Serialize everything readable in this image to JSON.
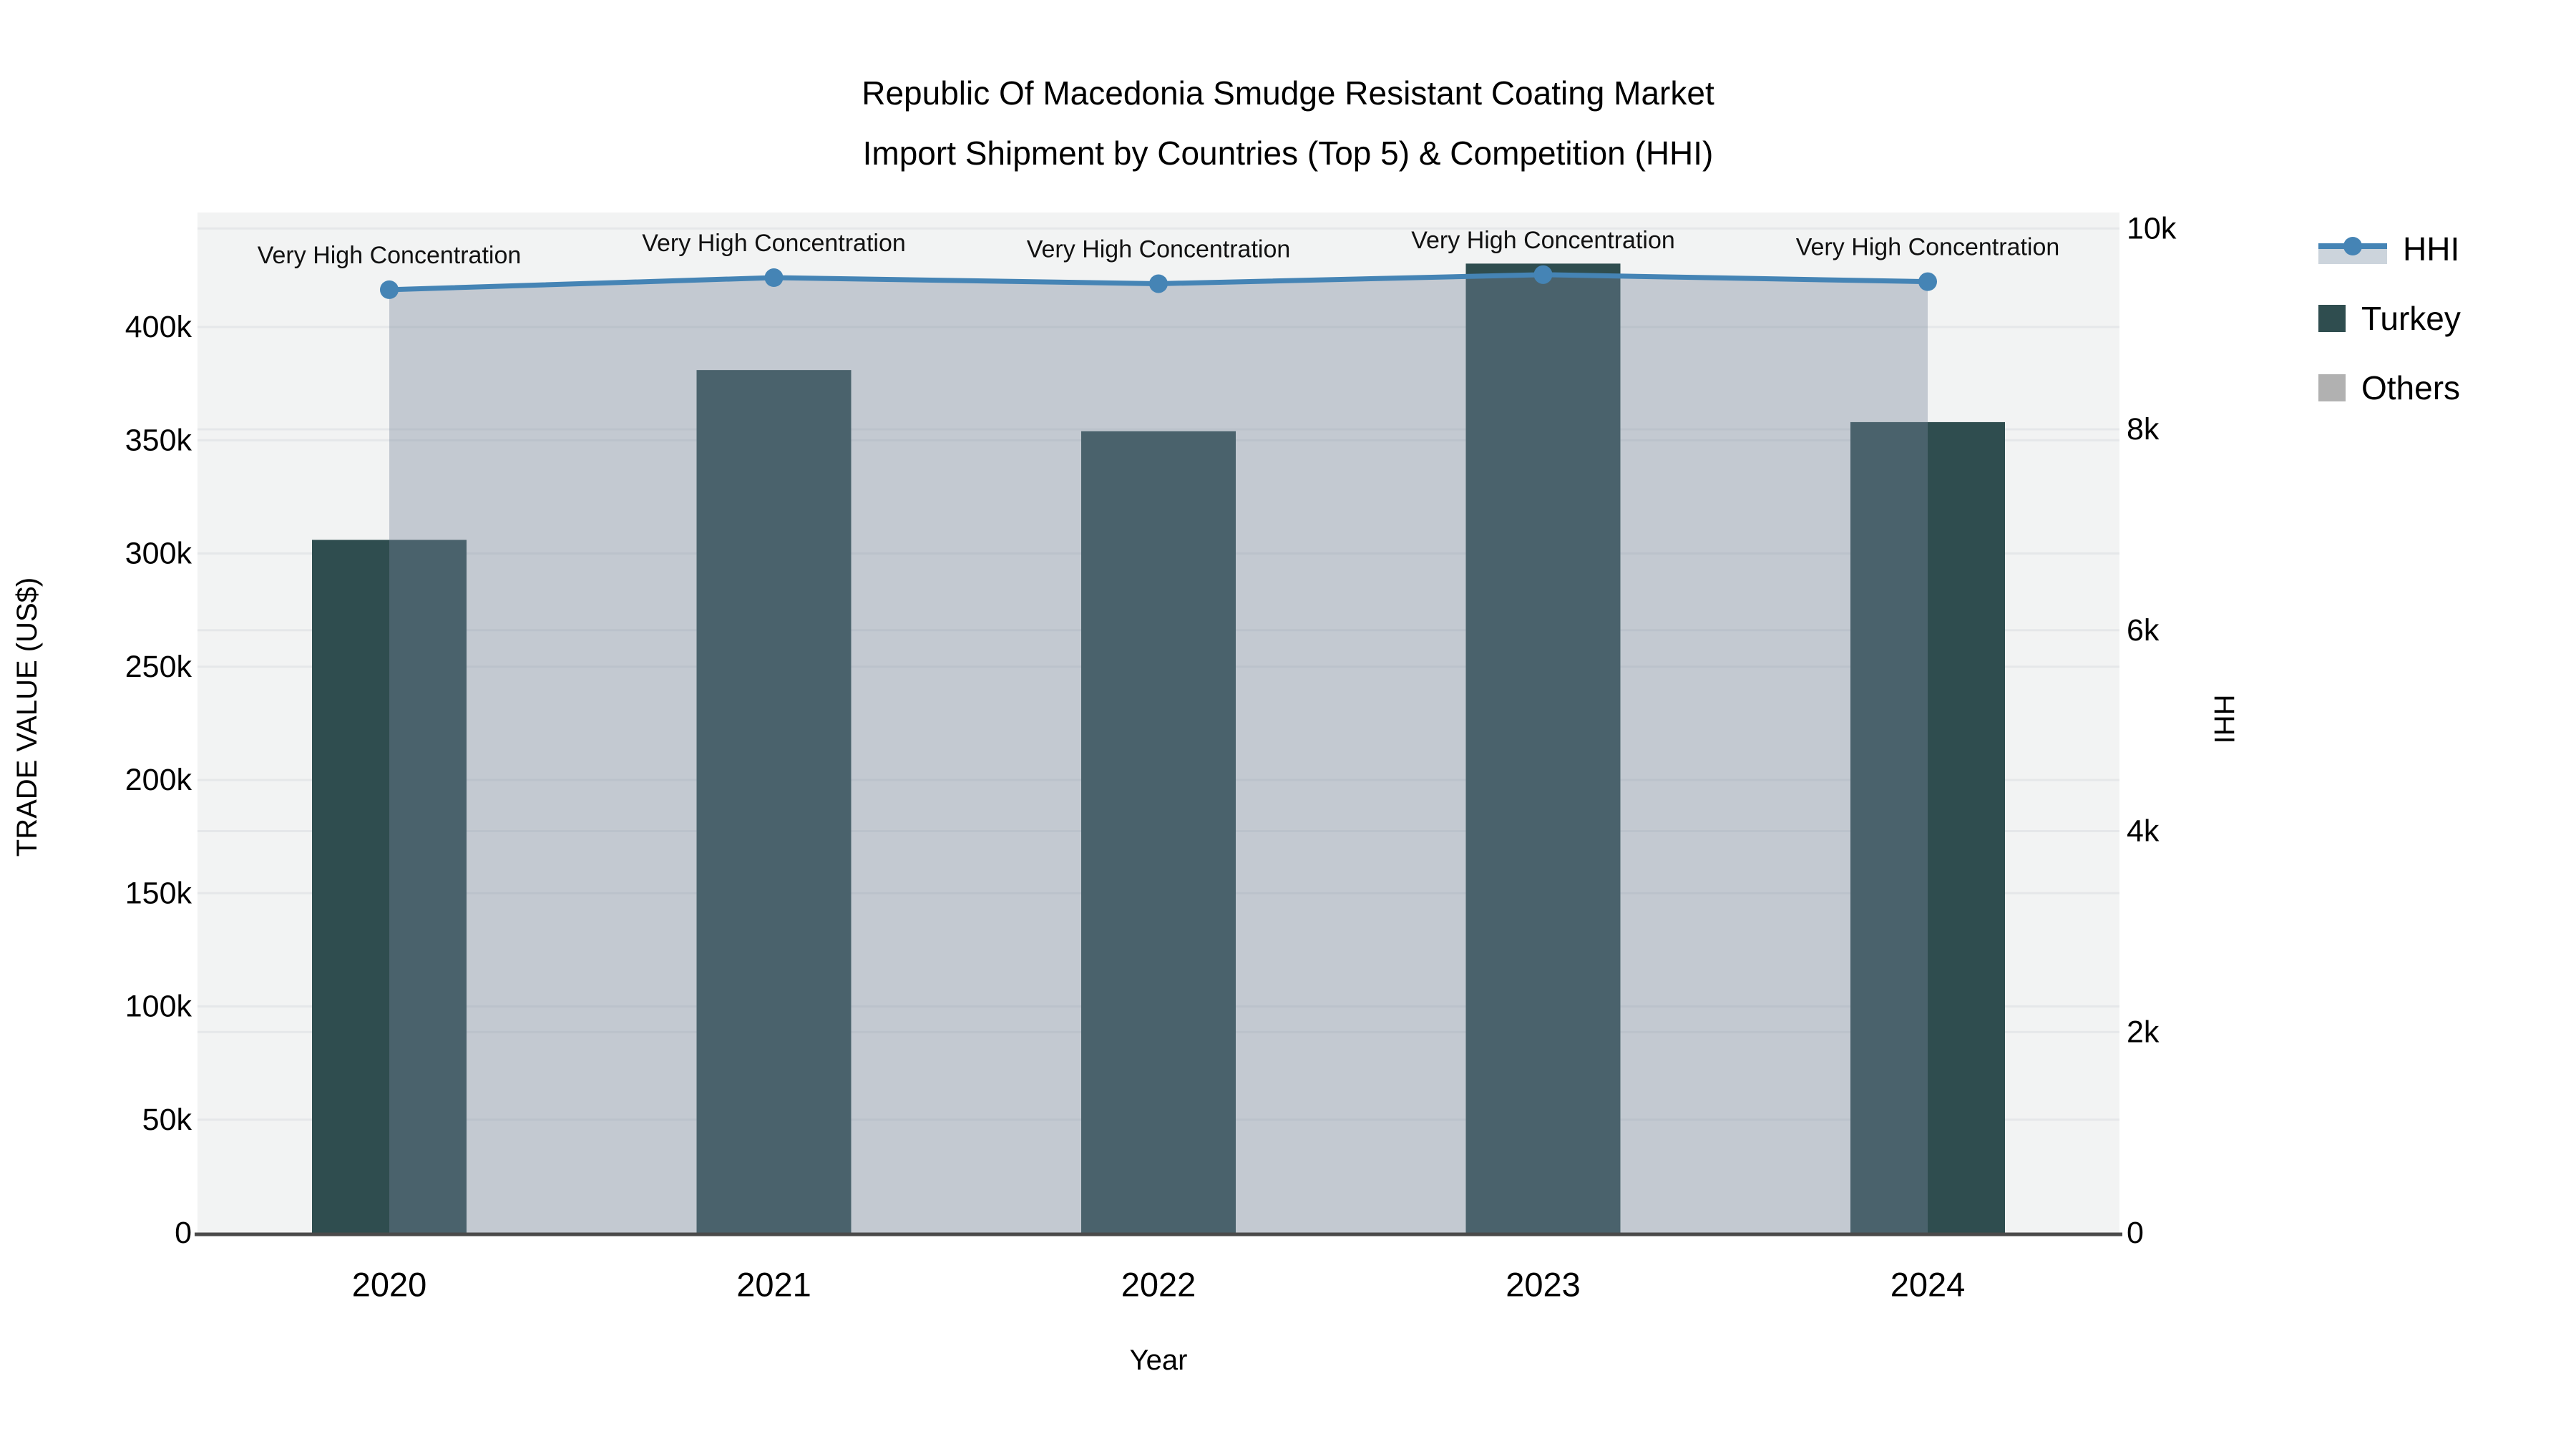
{
  "title": {
    "line1": "Republic Of Macedonia Smudge Resistant Coating Market",
    "line2": "Import Shipment by Countries (Top 5) & Competition (HHI)"
  },
  "legend": {
    "items": [
      {
        "label": "HHI",
        "symbol": "line-marker-area",
        "line_color": "#4584B5",
        "band_color": "#CCD4DC"
      },
      {
        "label": "Turkey",
        "symbol": "square",
        "color": "#2F4D4F"
      },
      {
        "label": "Others",
        "symbol": "square",
        "color": "#B1B1B1"
      }
    ]
  },
  "chart_data": {
    "type": "combo",
    "title": "Republic Of Macedonia Smudge Resistant Coating Market Import Shipment by Countries (Top 5) & Competition (HHI)",
    "categories": [
      "2020",
      "2021",
      "2022",
      "2023",
      "2024"
    ],
    "series": [
      {
        "name": "Turkey",
        "type": "bar",
        "yaxis": "left",
        "color": "#2F4D4F",
        "values": [
          306000,
          381000,
          354000,
          428000,
          358000
        ]
      },
      {
        "name": "Others",
        "type": "bar",
        "yaxis": "left",
        "color": "#B1B1B1",
        "values": [
          0,
          0,
          0,
          0,
          0
        ]
      },
      {
        "name": "HHI",
        "type": "line",
        "yaxis": "right",
        "color": "#4584B5",
        "area_fill": "rgba(118,134,156,0.38)",
        "marker": "circle",
        "values": [
          9390,
          9510,
          9450,
          9540,
          9470
        ]
      }
    ],
    "annotations": [
      {
        "year": "2020",
        "text": "Very High Concentration"
      },
      {
        "year": "2021",
        "text": "Very High Concentration"
      },
      {
        "year": "2022",
        "text": "Very High Concentration"
      },
      {
        "year": "2023",
        "text": "Very High Concentration"
      },
      {
        "year": "2024",
        "text": "Very High Concentration"
      }
    ],
    "x_axis": {
      "title": "Year",
      "tick_labels": [
        "2020",
        "2021",
        "2022",
        "2023",
        "2024"
      ]
    },
    "left_axis": {
      "title": "TRADE VALUE (US$)",
      "range": [
        0,
        450000
      ],
      "tick_values": [
        0,
        50000,
        100000,
        150000,
        200000,
        250000,
        300000,
        350000,
        400000
      ],
      "tick_labels": [
        "0",
        "50k",
        "100k",
        "150k",
        "200k",
        "250k",
        "300k",
        "350k",
        "400k"
      ]
    },
    "right_axis": {
      "title": "HHI",
      "range": [
        0,
        10000
      ],
      "tick_values": [
        0,
        2000,
        4000,
        6000,
        8000,
        10000
      ],
      "tick_labels": [
        "0",
        "2k",
        "4k",
        "6k",
        "8k",
        "10k"
      ]
    },
    "plot_background": "#F2F3F3",
    "grid_color": "#E5E7E9",
    "axis_line_color": "#4A4A4A",
    "legend_position": "right",
    "grid": true
  }
}
